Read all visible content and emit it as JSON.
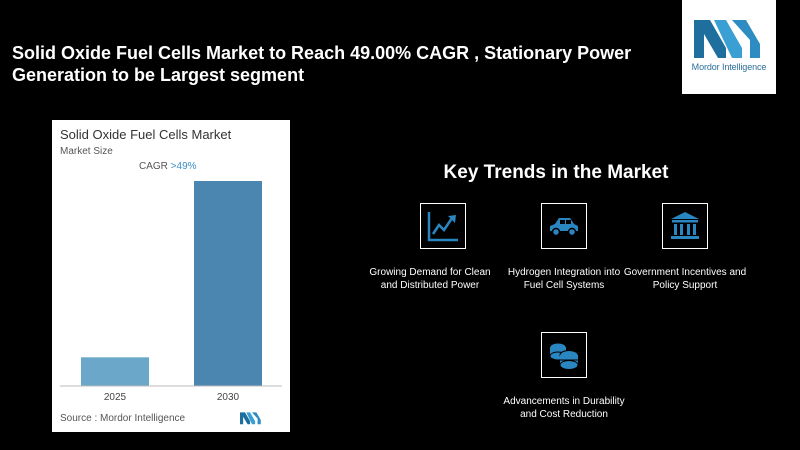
{
  "headline": "Solid Oxide Fuel Cells Market to Reach 49.00% CAGR , Stationary Power Generation to be Largest segment",
  "brand": {
    "name": "Mordor Intelligence",
    "color": "#2a8bbd"
  },
  "chart_card": {
    "title": "Solid Oxide Fuel Cells Market",
    "subtitle": "Market Size",
    "cagr_label": "CAGR ",
    "cagr_value": ">49%",
    "source": "Source : Mordor Intelligence"
  },
  "chart_data": {
    "type": "bar",
    "title": "Solid Oxide Fuel Cells Market",
    "categories": [
      "2025",
      "2030"
    ],
    "values": [
      14,
      100
    ],
    "value_note": "relative bar heights (no y-axis printed)",
    "colors": [
      "#6ba7c9",
      "#4a86b0"
    ]
  },
  "trends": {
    "title": "Key Trends in the Market",
    "items": [
      {
        "icon": "line-chart-icon",
        "label": "Growing Demand for Clean and Distributed Power"
      },
      {
        "icon": "car-icon",
        "label": "Hydrogen Integration into Fuel Cell Systems"
      },
      {
        "icon": "government-building-icon",
        "label": "Government Incentives and Policy Support"
      },
      {
        "icon": "coins-icon",
        "label": "Advancements in Durability and Cost Reduction"
      }
    ]
  },
  "colors": {
    "accent": "#3a8ec4",
    "icon_fill": "#2a86c0",
    "background": "#000000"
  }
}
